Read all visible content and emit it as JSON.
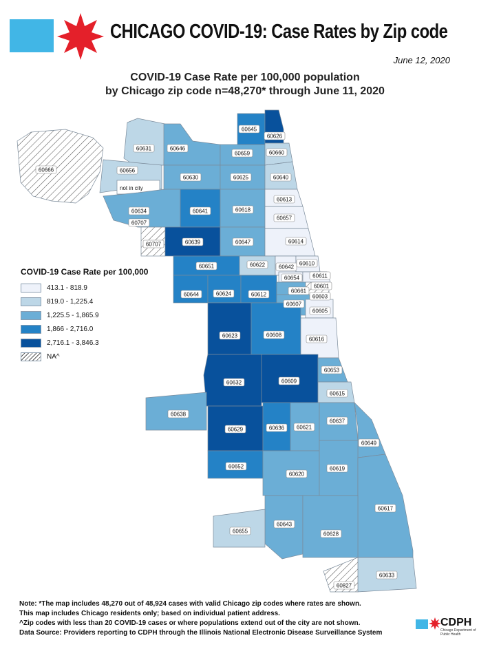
{
  "header": {
    "title": "CHICAGO COVID-19: Case Rates by Zip code",
    "date": "June 12, 2020",
    "brand_colors": {
      "blue": "#41b6e6",
      "red": "#e4202a"
    }
  },
  "map_title": {
    "line1": "COVID-19 Case Rate per 100,000 population",
    "line2": "by Chicago zip code n=48,270* through June 11, 2020"
  },
  "map": {
    "not_in_city_label": "not in city",
    "zip_labels": [
      "60645",
      "60626",
      "60631",
      "60646",
      "60659",
      "60660",
      "60666",
      "60656",
      "60630",
      "60625",
      "60640",
      "60613",
      "60634",
      "60641",
      "60618",
      "60657",
      "60707",
      "60707",
      "60639",
      "60647",
      "60614",
      "60651",
      "60622",
      "60642",
      "60610",
      "60654",
      "60611",
      "60601",
      "60644",
      "60624",
      "60612",
      "60661",
      "60603",
      "60607",
      "60605",
      "60623",
      "60608",
      "60616",
      "60632",
      "60609",
      "60653",
      "60615",
      "60638",
      "60629",
      "60636",
      "60621",
      "60637",
      "60649",
      "60652",
      "60620",
      "60619",
      "60617",
      "60655",
      "60643",
      "60628",
      "60633",
      "60827"
    ]
  },
  "legend": {
    "title": "COVID-19 Case Rate per 100,000",
    "items": [
      {
        "label": "413.1 - 818.9",
        "color": "#eef2fa"
      },
      {
        "label": "819.0 - 1,225.4",
        "color": "#bdd7e7"
      },
      {
        "label": "1,225.5 - 1,865.9",
        "color": "#6baed6"
      },
      {
        "label": "1,866 - 2,716.0",
        "color": "#2482c6"
      },
      {
        "label": "2,716.1 - 3,846.3",
        "color": "#08519c"
      },
      {
        "label": "NA^",
        "color": "hatch"
      }
    ]
  },
  "notes": {
    "line1": "Note: *The map includes 48,270 out of 48,924 cases with valid Chicago zip codes where rates are shown.",
    "line2": "This map includes Chicago residents only; based on individual patient address.",
    "line3": "^Zip codes with less than 20 COVID-19 cases or where populations extend out of the city are not shown.",
    "line4": "Data Source: Providers reporting to CDPH through the Illinois National Electronic Disease Surveillance System"
  },
  "logo": {
    "name": "CDPH",
    "subtitle": "Chicago Department of Public Health"
  }
}
